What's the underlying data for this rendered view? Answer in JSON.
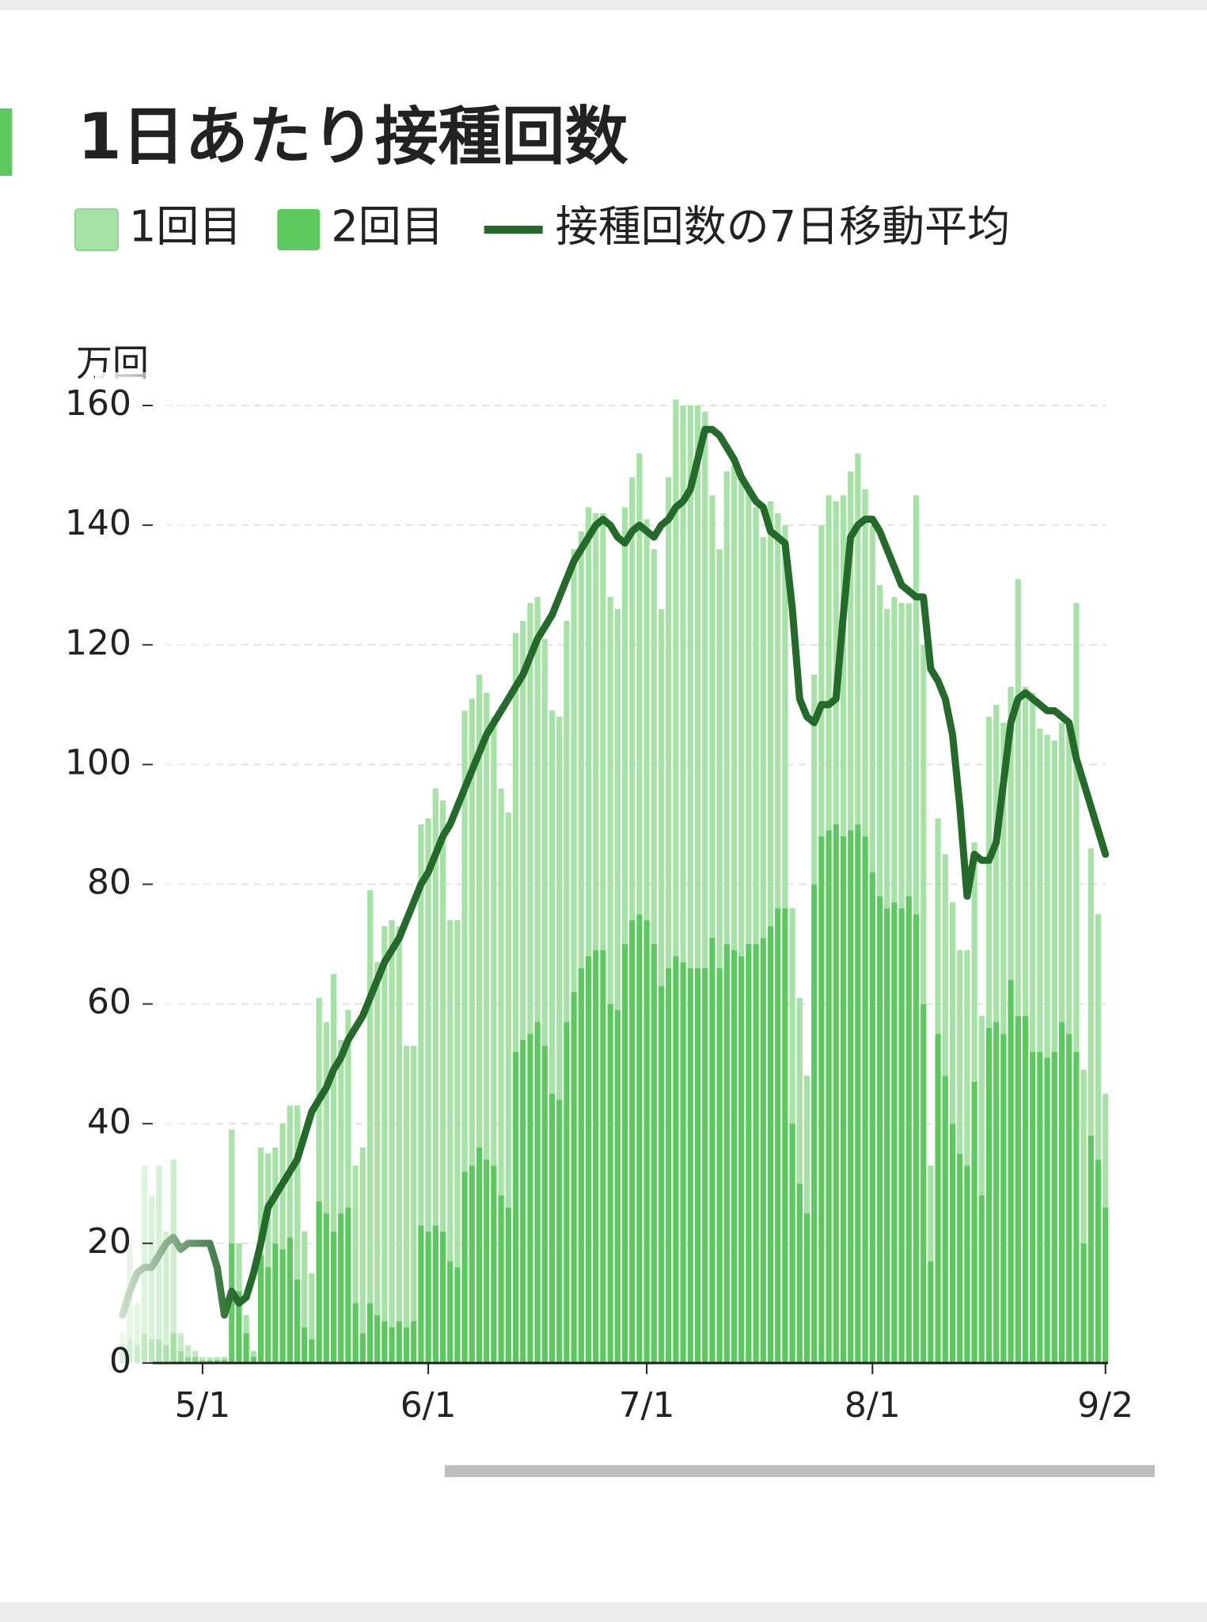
{
  "chart_data": {
    "type": "bar",
    "title": "1日あたり接種回数",
    "y_label": "万回",
    "stacked": true,
    "grid": true,
    "ylim": [
      0,
      160
    ],
    "yticks": [
      0,
      20,
      40,
      60,
      80,
      100,
      120,
      140,
      160
    ],
    "categories": [
      null,
      null,
      null,
      null,
      null,
      null,
      null,
      null,
      null,
      null,
      null,
      "5/1",
      null,
      null,
      null,
      null,
      null,
      null,
      null,
      null,
      null,
      null,
      null,
      null,
      null,
      null,
      null,
      null,
      null,
      null,
      null,
      null,
      null,
      null,
      null,
      null,
      null,
      null,
      null,
      null,
      null,
      null,
      "6/1",
      null,
      null,
      null,
      null,
      null,
      null,
      null,
      null,
      null,
      null,
      null,
      null,
      null,
      null,
      null,
      null,
      null,
      null,
      null,
      null,
      null,
      null,
      null,
      null,
      null,
      null,
      null,
      null,
      null,
      "7/1",
      null,
      null,
      null,
      null,
      null,
      null,
      null,
      null,
      null,
      null,
      null,
      null,
      null,
      null,
      null,
      null,
      null,
      null,
      null,
      null,
      null,
      null,
      null,
      null,
      null,
      null,
      null,
      null,
      null,
      null,
      "8/1",
      null,
      null,
      null,
      null,
      null,
      null,
      null,
      null,
      null,
      null,
      null,
      null,
      null,
      null,
      null,
      null,
      null,
      null,
      null,
      null,
      null,
      null,
      null,
      null,
      null,
      null,
      null,
      null,
      null,
      null,
      null,
      "9/2"
    ],
    "series": [
      {
        "name": "1回目",
        "type": "bar",
        "color": "#a6e2a6",
        "values": [
          2,
          16,
          7,
          28,
          24,
          29,
          19,
          29,
          3,
          2,
          1,
          0.5,
          0.5,
          0.5,
          0.5,
          19,
          8,
          3,
          1,
          18,
          19,
          16,
          21,
          22,
          29,
          16,
          11,
          34,
          32,
          43,
          29,
          33,
          23,
          31,
          69,
          59,
          66,
          68,
          66,
          47,
          46,
          67,
          69,
          73,
          72,
          57,
          58,
          77,
          78,
          79,
          78,
          75,
          68,
          66,
          70,
          70,
          72,
          71,
          68,
          64,
          64,
          67,
          74,
          73,
          75,
          73,
          73,
          68,
          67,
          73,
          74,
          77,
          67,
          66,
          63,
          82,
          93,
          93,
          94,
          94,
          93,
          74,
          70,
          79,
          81,
          80,
          76,
          73,
          67,
          71,
          66,
          64,
          36,
          31,
          23,
          35,
          52,
          56,
          54,
          57,
          60,
          62,
          58,
          58,
          52,
          50,
          51,
          51,
          49,
          70,
          60,
          16,
          36,
          37,
          37,
          34,
          36,
          40,
          30,
          52,
          53,
          52,
          49,
          73,
          55,
          60,
          54,
          54,
          52,
          50,
          52,
          75,
          29,
          48,
          41,
          19
        ]
      },
      {
        "name": "2回目",
        "type": "bar",
        "color": "#5cc95f",
        "values": [
          3,
          4,
          3,
          5,
          4,
          4,
          3,
          5,
          2,
          1,
          1,
          0.5,
          0.5,
          0.5,
          0.5,
          20,
          12,
          5,
          1,
          18,
          16,
          20,
          19,
          21,
          14,
          6,
          4,
          27,
          25,
          22,
          25,
          26,
          10,
          5,
          10,
          8,
          7,
          6,
          7,
          6,
          7,
          23,
          22,
          23,
          22,
          17,
          16,
          32,
          33,
          36,
          34,
          33,
          28,
          26,
          52,
          54,
          55,
          57,
          53,
          45,
          44,
          57,
          62,
          66,
          68,
          69,
          69,
          60,
          59,
          70,
          74,
          75,
          74,
          70,
          63,
          66,
          68,
          67,
          66,
          66,
          66,
          71,
          66,
          70,
          69,
          68,
          70,
          70,
          71,
          73,
          76,
          76,
          40,
          30,
          25,
          80,
          88,
          89,
          90,
          88,
          89,
          90,
          88,
          82,
          78,
          76,
          77,
          76,
          78,
          75,
          60,
          17,
          55,
          48,
          40,
          35,
          33,
          47,
          28,
          56,
          57,
          55,
          64,
          58,
          58,
          52,
          52,
          51,
          52,
          57,
          55,
          52,
          20,
          38,
          34,
          26
        ]
      },
      {
        "name": "接種回数の7日移動平均",
        "type": "line",
        "color": "#246b2b",
        "values": [
          8,
          12,
          15,
          16,
          16,
          18,
          20,
          21,
          19,
          20,
          20,
          20,
          20,
          16,
          8,
          12,
          10,
          11,
          15,
          20,
          26,
          28,
          30,
          32,
          34,
          38,
          42,
          44,
          46,
          49,
          51,
          54,
          56,
          58,
          61,
          64,
          67,
          69,
          71,
          74,
          77,
          80,
          82,
          85,
          88,
          90,
          93,
          96,
          99,
          102,
          105,
          107,
          109,
          111,
          113,
          115,
          118,
          121,
          123,
          125,
          128,
          131,
          134,
          136,
          138,
          140,
          141,
          140,
          138,
          137,
          139,
          140,
          139,
          138,
          140,
          141,
          143,
          144,
          146,
          151,
          156,
          156,
          155,
          153,
          151,
          148,
          146,
          144,
          143,
          139,
          138,
          137,
          126,
          111,
          108,
          107,
          110,
          110,
          111,
          125,
          138,
          140,
          141,
          141,
          139,
          136,
          133,
          130,
          129,
          128,
          128,
          116,
          114,
          111,
          105,
          93,
          78,
          85,
          84,
          84,
          87,
          97,
          107,
          111,
          112,
          111,
          110,
          109,
          109,
          108,
          107,
          101,
          97,
          93,
          89,
          85
        ]
      }
    ]
  }
}
